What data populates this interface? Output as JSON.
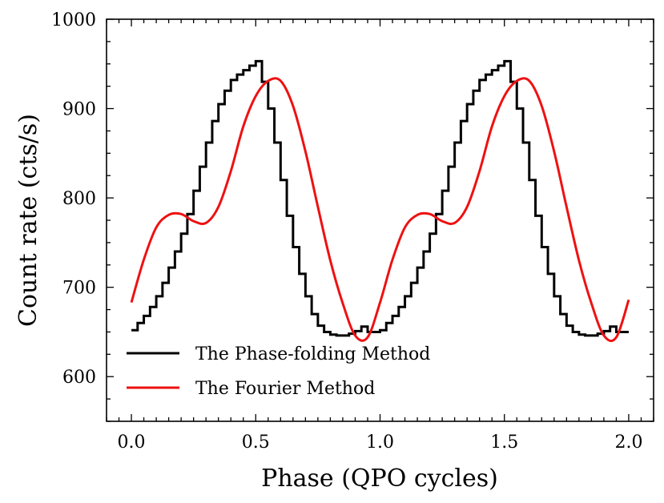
{
  "chart_data": {
    "type": "line",
    "title": "",
    "xlabel": "Phase (QPO cycles)",
    "ylabel": "Count rate (cts/s)",
    "xlim": [
      -0.1,
      2.1
    ],
    "ylim": [
      550,
      1000
    ],
    "xticks": [
      0.0,
      0.5,
      1.0,
      1.5,
      2.0
    ],
    "xtick_labels": [
      "0.0",
      "0.5",
      "1.0",
      "1.5",
      "2.0"
    ],
    "yticks": [
      600,
      700,
      800,
      900,
      1000
    ],
    "ytick_labels": [
      "600",
      "700",
      "800",
      "900",
      "1000"
    ],
    "grid": false,
    "legend_position": "lower-left",
    "series": [
      {
        "name": "The Phase-folding Method",
        "style": "step",
        "color": "#000000",
        "bin_width": 0.025,
        "x": [
          0.0,
          0.025,
          0.05,
          0.075,
          0.1,
          0.125,
          0.15,
          0.175,
          0.2,
          0.225,
          0.25,
          0.275,
          0.3,
          0.325,
          0.35,
          0.375,
          0.4,
          0.425,
          0.45,
          0.475,
          0.5,
          0.525,
          0.55,
          0.575,
          0.6,
          0.625,
          0.65,
          0.675,
          0.7,
          0.725,
          0.75,
          0.775,
          0.8,
          0.825,
          0.85,
          0.875,
          0.9,
          0.925,
          0.95,
          0.975,
          1.0,
          1.025,
          1.05,
          1.075,
          1.1,
          1.125,
          1.15,
          1.175,
          1.2,
          1.225,
          1.25,
          1.275,
          1.3,
          1.325,
          1.35,
          1.375,
          1.4,
          1.425,
          1.45,
          1.475,
          1.5,
          1.525,
          1.55,
          1.575,
          1.6,
          1.625,
          1.65,
          1.675,
          1.7,
          1.725,
          1.75,
          1.775,
          1.8,
          1.825,
          1.85,
          1.875,
          1.9,
          1.925,
          1.95,
          1.975
        ],
        "y": [
          652,
          660,
          668,
          678,
          690,
          705,
          722,
          740,
          760,
          782,
          808,
          835,
          862,
          886,
          905,
          920,
          932,
          938,
          943,
          948,
          953,
          930,
          900,
          862,
          820,
          780,
          745,
          715,
          690,
          670,
          657,
          650,
          647,
          646,
          646,
          648,
          651,
          656,
          650,
          650,
          652,
          660,
          668,
          678,
          690,
          705,
          722,
          740,
          760,
          782,
          808,
          835,
          862,
          886,
          905,
          920,
          932,
          938,
          943,
          948,
          953,
          930,
          900,
          862,
          820,
          780,
          745,
          715,
          690,
          670,
          657,
          650,
          647,
          646,
          646,
          648,
          651,
          656,
          650,
          650
        ]
      },
      {
        "name": "The Fourier Method",
        "style": "smooth",
        "color": "#ee1111",
        "x": [
          0.0,
          0.05,
          0.1,
          0.15,
          0.2,
          0.25,
          0.3,
          0.35,
          0.4,
          0.45,
          0.5,
          0.55,
          0.6,
          0.65,
          0.7,
          0.75,
          0.8,
          0.85,
          0.9,
          0.95,
          1.0,
          1.05,
          1.1,
          1.15,
          1.2,
          1.25,
          1.3,
          1.35,
          1.4,
          1.45,
          1.5,
          1.55,
          1.6,
          1.65,
          1.7,
          1.75,
          1.8,
          1.85,
          1.9,
          1.95,
          2.0
        ],
        "y": [
          683,
          731,
          767,
          781,
          782,
          774,
          772,
          790,
          830,
          880,
          914,
          931,
          931,
          903,
          852,
          790,
          730,
          682,
          646,
          644,
          683,
          731,
          767,
          781,
          782,
          774,
          772,
          790,
          830,
          880,
          914,
          931,
          931,
          903,
          852,
          790,
          730,
          682,
          646,
          644,
          686
        ]
      }
    ]
  }
}
